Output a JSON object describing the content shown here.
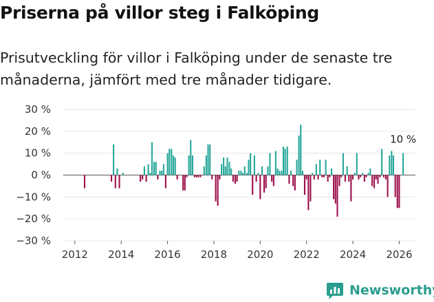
{
  "header": {
    "title": "Priserna på villor steg i Falköping",
    "subtitle": "Prisutveckling för villor i Falköping under de senaste tre månaderna, jämfört med tre månader tidigare."
  },
  "brand": {
    "name": "Newsworthy",
    "icon": "bar-chart-logo-icon"
  },
  "colors": {
    "positive": "#26a69a",
    "negative": "#9c0f4a",
    "grid": "#e6e6e6",
    "brand": "#2a9d8f"
  },
  "chart_data": {
    "type": "bar",
    "title": "Priserna på villor steg i Falköping",
    "xlabel": "",
    "ylabel": "",
    "ylim": [
      -30,
      30
    ],
    "yticks": [
      30,
      20,
      10,
      0,
      -10,
      -20,
      -30
    ],
    "ytick_labels": [
      "30 %",
      "20 %",
      "10 %",
      "0 %",
      "−10 %",
      "−20 %",
      "−30 %"
    ],
    "xlim": [
      2011.5,
      2026.7
    ],
    "xticks": [
      2012,
      2014,
      2016,
      2018,
      2020,
      2022,
      2024,
      2026
    ],
    "xtick_labels": [
      "2012",
      "2014",
      "2016",
      "2018",
      "2020",
      "2022",
      "2024",
      "2026"
    ],
    "annotation": {
      "text": "10 %",
      "x": 2026.17,
      "y": 10
    },
    "x": [
      2012.42,
      2013.58,
      2013.67,
      2013.75,
      2013.83,
      2013.92,
      2014.08,
      2014.83,
      2014.92,
      2015.0,
      2015.08,
      2015.17,
      2015.25,
      2015.33,
      2015.42,
      2015.5,
      2015.58,
      2015.67,
      2015.75,
      2015.83,
      2015.92,
      2016.0,
      2016.08,
      2016.17,
      2016.25,
      2016.33,
      2016.42,
      2016.67,
      2016.75,
      2016.83,
      2016.92,
      2017.0,
      2017.08,
      2017.17,
      2017.25,
      2017.33,
      2017.42,
      2017.58,
      2017.67,
      2017.75,
      2017.83,
      2017.92,
      2018.08,
      2018.17,
      2018.25,
      2018.33,
      2018.42,
      2018.5,
      2018.58,
      2018.67,
      2018.75,
      2018.83,
      2018.92,
      2019.0,
      2019.08,
      2019.17,
      2019.25,
      2019.33,
      2019.42,
      2019.5,
      2019.58,
      2019.67,
      2019.75,
      2019.83,
      2019.92,
      2020.0,
      2020.08,
      2020.17,
      2020.25,
      2020.33,
      2020.42,
      2020.5,
      2020.58,
      2020.67,
      2020.75,
      2020.83,
      2020.92,
      2021.0,
      2021.08,
      2021.17,
      2021.25,
      2021.33,
      2021.42,
      2021.5,
      2021.58,
      2021.67,
      2021.75,
      2021.83,
      2021.92,
      2022.0,
      2022.08,
      2022.17,
      2022.25,
      2022.33,
      2022.42,
      2022.5,
      2022.58,
      2022.67,
      2022.75,
      2022.83,
      2022.92,
      2023.0,
      2023.08,
      2023.17,
      2023.25,
      2023.33,
      2023.42,
      2023.5,
      2023.58,
      2023.67,
      2023.75,
      2023.83,
      2023.92,
      2024.0,
      2024.08,
      2024.17,
      2024.25,
      2024.33,
      2024.42,
      2024.5,
      2024.58,
      2024.67,
      2024.75,
      2024.83,
      2024.92,
      2025.0,
      2025.08,
      2025.17,
      2025.25,
      2025.33,
      2025.42,
      2025.5,
      2025.58,
      2025.67,
      2025.75,
      2025.83,
      2025.92,
      2026.0,
      2026.17
    ],
    "values": [
      -6,
      -3,
      14,
      -6,
      3,
      -6,
      1,
      -3,
      -2,
      4,
      -3,
      5,
      1,
      15,
      6,
      6,
      -2,
      2,
      2,
      5,
      -6,
      10,
      12,
      12,
      9,
      8,
      -2,
      -7,
      -7,
      -1,
      9,
      16,
      9,
      -1,
      -1,
      -1,
      -1,
      4,
      9,
      14,
      14,
      -2,
      -12,
      -14,
      -2,
      5,
      8,
      4,
      8,
      6,
      3,
      -3,
      -4,
      -3,
      2,
      2,
      1,
      4,
      1,
      7,
      10,
      -9,
      9,
      -3,
      1,
      -11,
      4,
      -8,
      -6,
      4,
      10,
      -3,
      -5,
      11,
      3,
      2,
      2,
      13,
      12,
      13,
      -4,
      2,
      -5,
      -7,
      7,
      18,
      23,
      2,
      -9,
      -2,
      -16,
      -12,
      1,
      -2,
      5,
      -2,
      7,
      -1,
      -1,
      7,
      -3,
      -1,
      3,
      -11,
      -13,
      -19,
      -5,
      -1,
      10,
      -3,
      4,
      -3,
      -12,
      -2,
      1,
      10,
      -2,
      -1,
      1,
      -3,
      -1,
      1,
      3,
      -5,
      -6,
      -2,
      -4,
      -1,
      12,
      -1,
      -2,
      -10,
      9,
      11,
      9,
      -10,
      -15,
      -15,
      10
    ]
  }
}
